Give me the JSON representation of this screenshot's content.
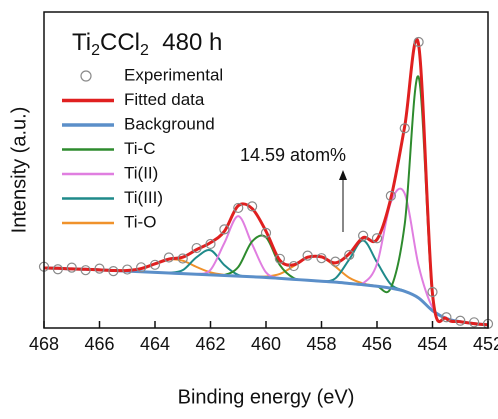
{
  "chart_data": {
    "type": "line",
    "title_parts": [
      "Ti",
      "2",
      "CCl",
      "2",
      "  480 h"
    ],
    "xlabel": "Binding energy (eV)",
    "ylabel": "Intensity (a.u.)",
    "annotation": "14.59 atom%",
    "annotation_color": "#f0922b",
    "legend": "upper left",
    "xlim": [
      468,
      452
    ],
    "xticks": [
      468,
      466,
      464,
      462,
      460,
      458,
      456,
      454,
      452
    ],
    "ylim": [
      0,
      100
    ],
    "x": [
      468,
      467.5,
      467,
      466.5,
      466,
      465.5,
      465,
      464.5,
      464,
      463.5,
      463,
      462.5,
      462,
      461.5,
      461,
      460.5,
      460,
      459.5,
      459,
      458.5,
      458,
      457.5,
      457,
      456.5,
      456,
      455.5,
      455,
      454.5,
      454,
      453.5,
      453,
      452.5,
      452
    ],
    "series": [
      {
        "name": "Experimental",
        "style": "scatter",
        "color": "#8a8a8a",
        "values": [
          19.4,
          18.6,
          19.1,
          18.3,
          18.8,
          18.0,
          18.5,
          19.2,
          20.0,
          22.3,
          22.0,
          25.3,
          26.6,
          31.2,
          38.0,
          38.5,
          30.1,
          21.9,
          19.6,
          22.9,
          22.1,
          21.0,
          23.1,
          29.2,
          28.4,
          41.8,
          63.2,
          90.5,
          11.4,
          3.4,
          2.3,
          1.8,
          1.3
        ]
      },
      {
        "name": "Fitted data",
        "style": "line",
        "color": "#e02020",
        "width": 3,
        "values": [
          19.0,
          18.9,
          18.7,
          18.6,
          18.4,
          18.2,
          18.2,
          18.8,
          20.3,
          21.8,
          22.4,
          24.8,
          27.0,
          30.6,
          38.7,
          37.8,
          30.6,
          21.4,
          20.0,
          22.4,
          22.5,
          20.6,
          23.5,
          28.6,
          28.0,
          41.1,
          63.9,
          89.6,
          10.8,
          3.0,
          2.0,
          1.4,
          1.0
        ]
      },
      {
        "name": "Background",
        "style": "line",
        "color": "#5b8fc9",
        "width": 3,
        "values": [
          19.0,
          18.9,
          18.7,
          18.6,
          18.4,
          18.2,
          18.0,
          17.8,
          17.6,
          17.4,
          17.2,
          17.0,
          16.8,
          16.6,
          16.4,
          16.2,
          16.0,
          15.7,
          15.4,
          15.1,
          14.8,
          14.5,
          14.1,
          13.7,
          13.2,
          12.6,
          11.6,
          9.5,
          5.5,
          3.0,
          2.0,
          1.4,
          1.0
        ]
      },
      {
        "name": "Ti-C",
        "style": "line",
        "color": "#2e8b2e",
        "width": 2,
        "values": [
          19.0,
          18.9,
          18.7,
          18.6,
          18.4,
          18.2,
          18.0,
          17.8,
          17.6,
          17.4,
          17.2,
          17.0,
          16.8,
          16.8,
          19.3,
          27.4,
          28.7,
          19.9,
          15.8,
          15.1,
          14.8,
          14.5,
          14.1,
          13.7,
          13.2,
          12.7,
          32.9,
          79.4,
          9.8,
          3.0,
          2.0,
          1.4,
          1.0
        ]
      },
      {
        "name": "Ti(II)",
        "style": "line",
        "color": "#e07ee0",
        "width": 2,
        "values": [
          19.0,
          18.9,
          18.7,
          18.6,
          18.4,
          18.2,
          18.0,
          17.8,
          17.6,
          17.4,
          17.2,
          17.1,
          18.4,
          26.9,
          35.4,
          26.5,
          17.6,
          15.8,
          15.4,
          15.1,
          14.8,
          14.5,
          14.1,
          14.2,
          20.3,
          39.8,
          42.5,
          19.7,
          6.5,
          3.0,
          2.0,
          1.4,
          1.0
        ]
      },
      {
        "name": "Ti(III)",
        "style": "line",
        "color": "#1f8a8a",
        "width": 2,
        "values": [
          19.0,
          18.9,
          18.7,
          18.6,
          18.4,
          18.2,
          18.0,
          17.8,
          17.6,
          17.5,
          18.3,
          22.4,
          24.6,
          19.9,
          16.8,
          16.2,
          16.0,
          15.7,
          15.4,
          15.1,
          14.8,
          15.7,
          21.7,
          27.7,
          20.8,
          13.8,
          11.7,
          9.5,
          5.5,
          3.0,
          2.0,
          1.4,
          1.0
        ]
      },
      {
        "name": "Ti-O",
        "style": "line",
        "color": "#f0922b",
        "width": 2,
        "values": [
          19.0,
          18.9,
          18.7,
          18.6,
          18.4,
          18.2,
          18.2,
          18.8,
          20.3,
          21.7,
          21.3,
          19.3,
          17.6,
          16.8,
          16.4,
          16.3,
          16.3,
          17.1,
          19.6,
          22.4,
          22.5,
          19.4,
          15.9,
          14.1,
          13.3,
          12.6,
          11.6,
          9.5,
          5.5,
          3.0,
          2.0,
          1.4,
          1.0
        ]
      }
    ]
  }
}
